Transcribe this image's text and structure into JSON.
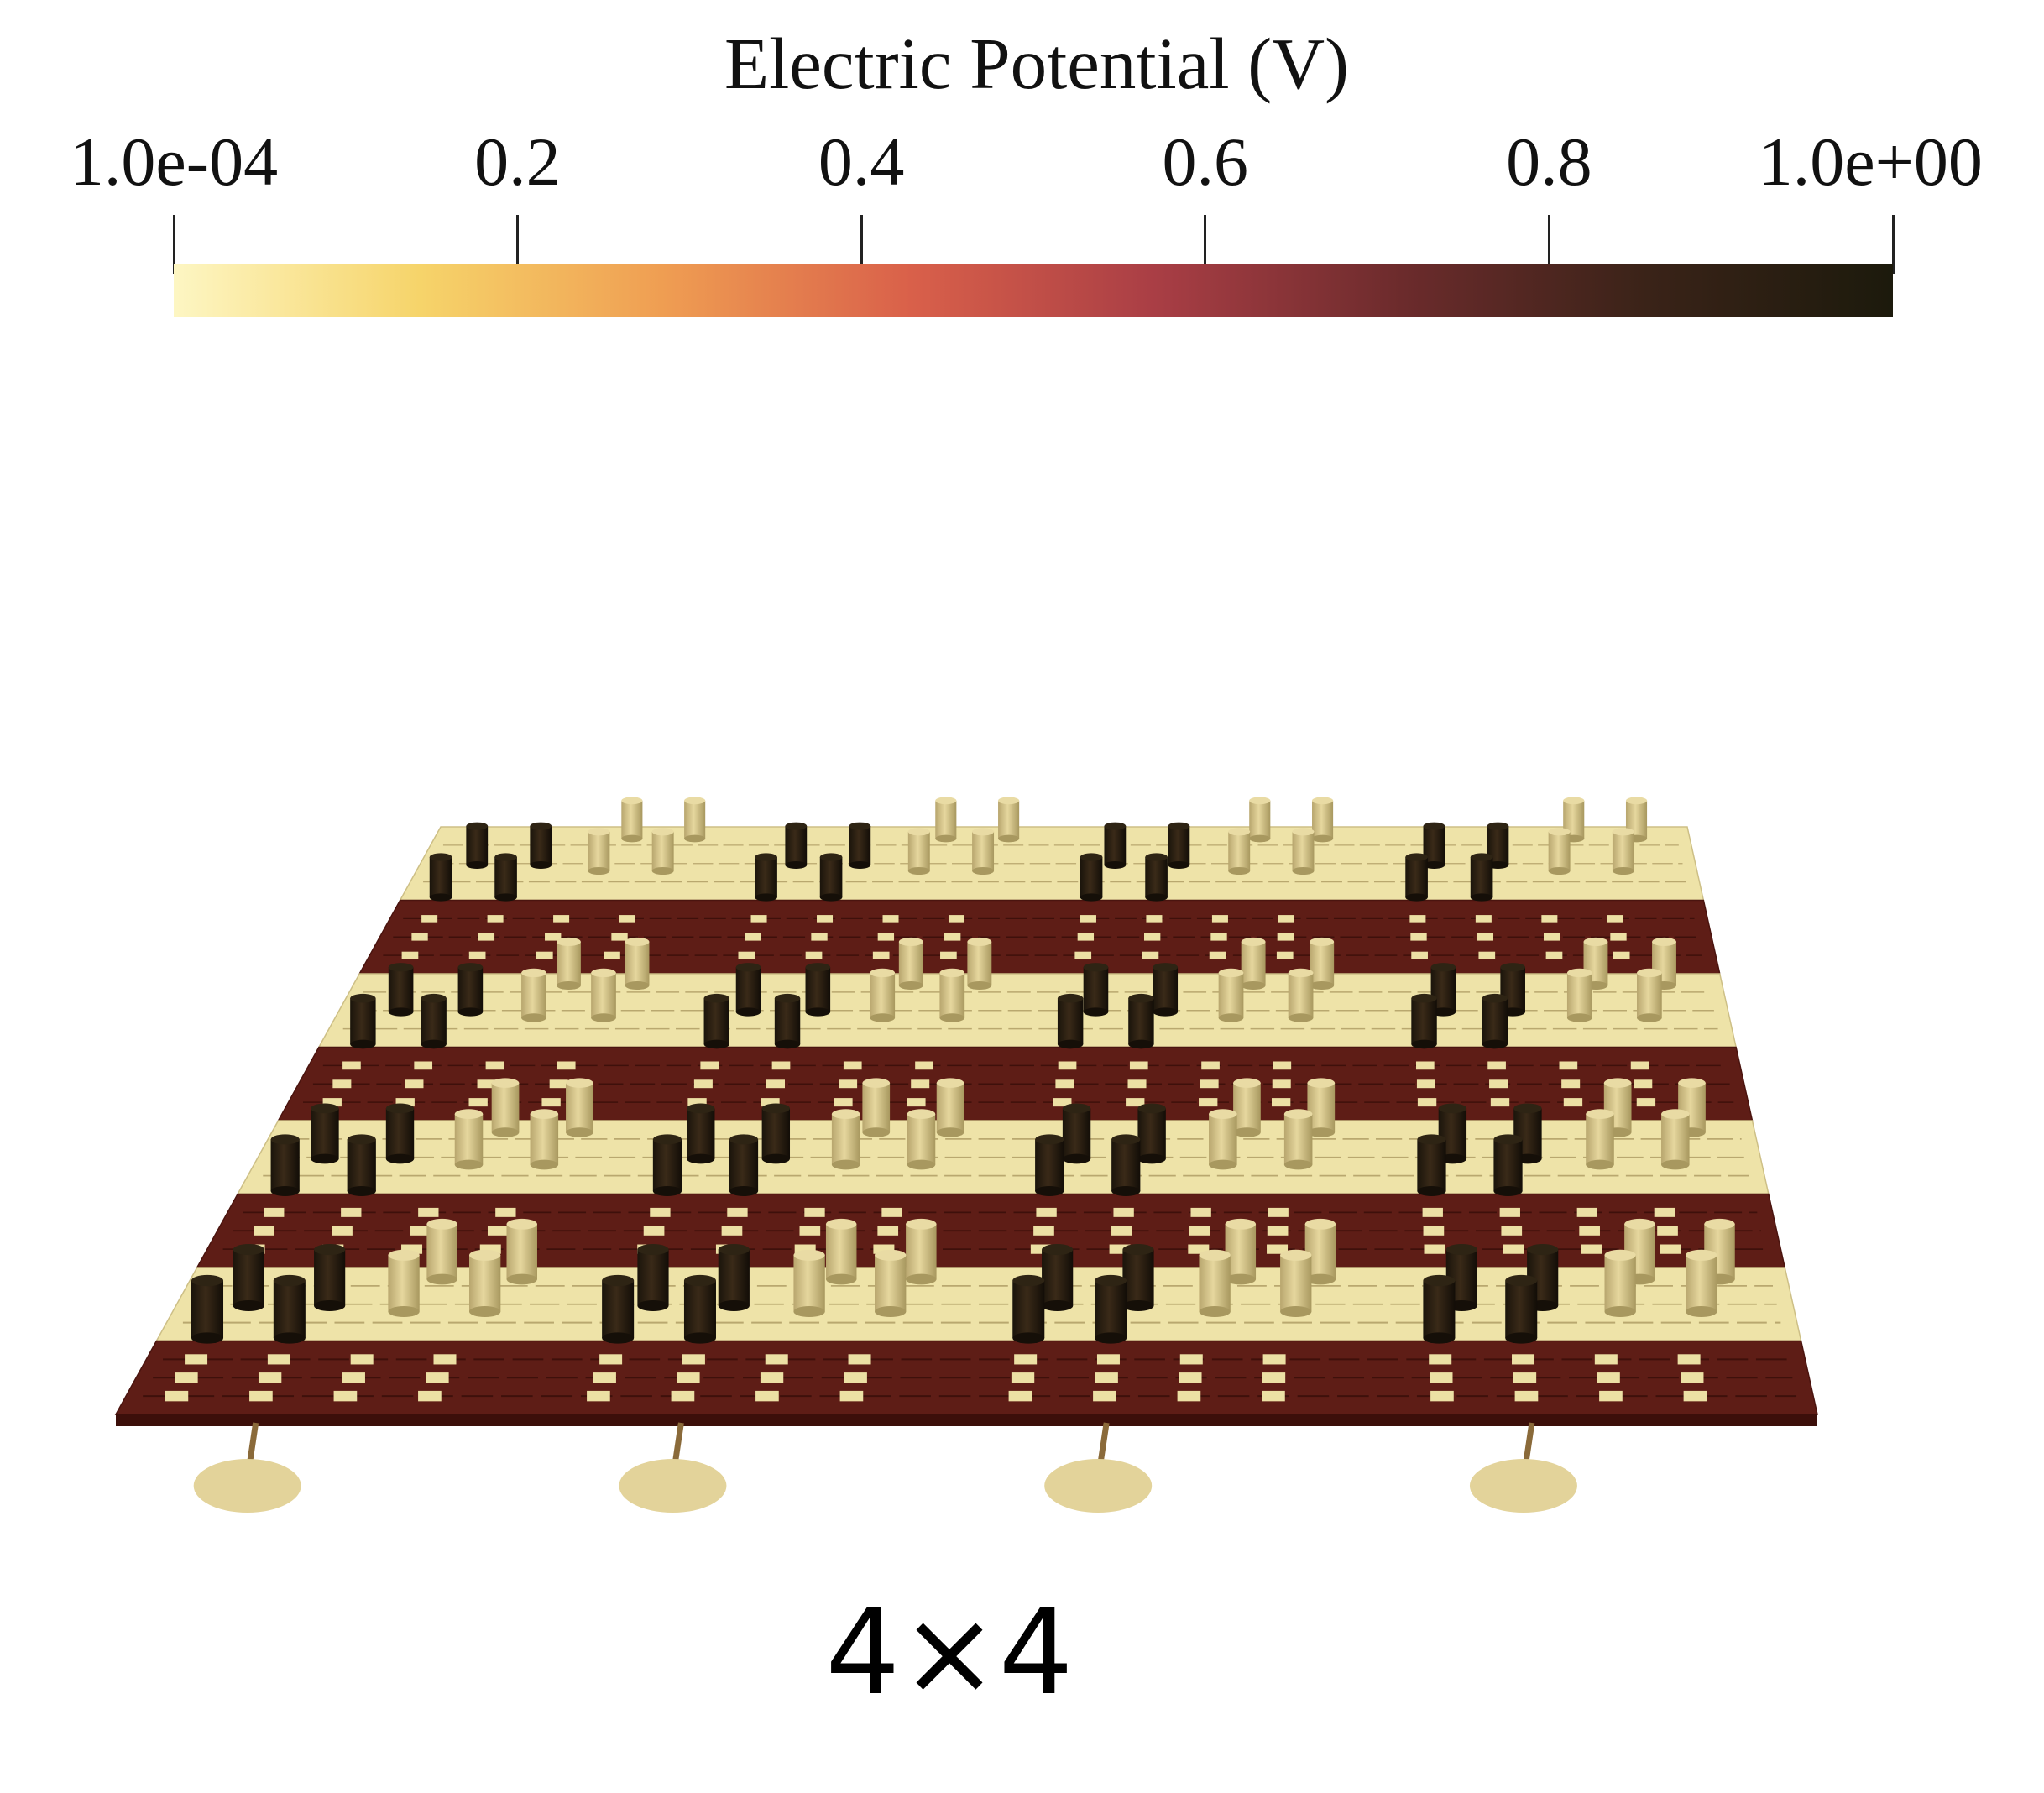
{
  "colorbar": {
    "title": "Electric Potential (V)",
    "min": 0.0001,
    "max": 1.0,
    "ticks": [
      {
        "label": "1.0e-04",
        "value": 0.0001
      },
      {
        "label": "0.2",
        "value": 0.2
      },
      {
        "label": "0.4",
        "value": 0.4
      },
      {
        "label": "0.6",
        "value": 0.6
      },
      {
        "label": "0.8",
        "value": 0.8
      },
      {
        "label": "1.0e+00",
        "value": 1.0
      }
    ],
    "colormap_stops": [
      "#fdf6c3",
      "#f6d46a",
      "#ef9d52",
      "#d9604a",
      "#a93e45",
      "#6c2b2c",
      "#3a2318",
      "#1c1a0c"
    ]
  },
  "scene": {
    "grid_size": "4×4",
    "unit_rows": 4,
    "unit_cols": 4,
    "high_potential_color": "#5e1d16",
    "low_potential_color": "#eee3a8",
    "high_pillar_color": "#2a2013",
    "low_pillar_color": "#d8c88a",
    "probe_color": "#e3d39a"
  },
  "caption": "4×4"
}
